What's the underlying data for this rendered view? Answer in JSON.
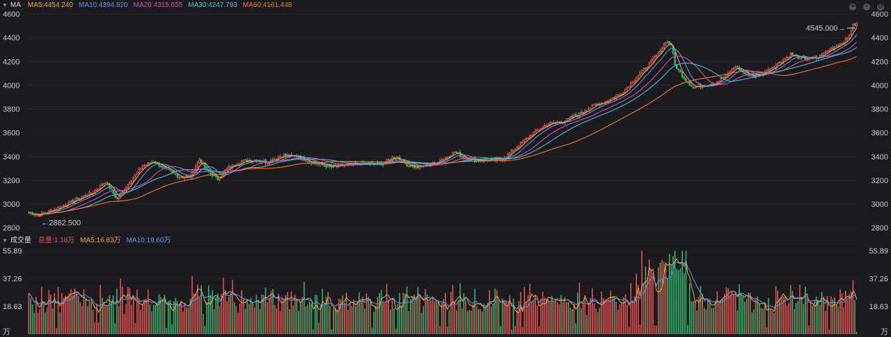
{
  "header": {
    "indicator": "MA",
    "ma5": "MA5:4454.240",
    "ma10": "MA10:4394.820",
    "ma20": "MA20:4315.655",
    "ma30": "MA30:4247.793",
    "ma60": "MA60:4161.448"
  },
  "volume_header": {
    "title": "成交量",
    "total": "总量:1.18万",
    "ma5": "MA5:16.83万",
    "ma10": "MA10:19.60万"
  },
  "colors": {
    "up": "#e05252",
    "down": "#2fb36b",
    "ma5": "#f2a93b",
    "ma10": "#4f9cf0",
    "ma20": "#d850b7",
    "ma30": "#38c6d9",
    "ma60": "#f07a2a"
  },
  "chart_data": [
    {
      "type": "candlestick",
      "title": "",
      "ylim": [
        2760,
        4600
      ],
      "yticks": [
        "4600",
        "4400",
        "4200",
        "4000",
        "3800",
        "3600",
        "3400",
        "3200",
        "3000",
        "2800"
      ],
      "annotations": {
        "high": "4545.000",
        "low": "2882.500"
      },
      "anchors": [
        [
          0,
          2930
        ],
        [
          5,
          2905
        ],
        [
          15,
          2960
        ],
        [
          25,
          3030
        ],
        [
          35,
          3100
        ],
        [
          42,
          3190
        ],
        [
          48,
          3040
        ],
        [
          55,
          3190
        ],
        [
          62,
          3320
        ],
        [
          68,
          3360
        ],
        [
          75,
          3290
        ],
        [
          82,
          3230
        ],
        [
          88,
          3230
        ],
        [
          93,
          3380
        ],
        [
          97,
          3280
        ],
        [
          103,
          3210
        ],
        [
          108,
          3300
        ],
        [
          116,
          3360
        ],
        [
          124,
          3370
        ],
        [
          130,
          3350
        ],
        [
          138,
          3410
        ],
        [
          146,
          3400
        ],
        [
          155,
          3350
        ],
        [
          165,
          3310
        ],
        [
          172,
          3330
        ],
        [
          182,
          3340
        ],
        [
          192,
          3340
        ],
        [
          200,
          3400
        ],
        [
          206,
          3330
        ],
        [
          212,
          3310
        ],
        [
          220,
          3340
        ],
        [
          226,
          3380
        ],
        [
          232,
          3440
        ],
        [
          237,
          3390
        ],
        [
          243,
          3370
        ],
        [
          250,
          3370
        ],
        [
          258,
          3380
        ],
        [
          266,
          3480
        ],
        [
          274,
          3590
        ],
        [
          282,
          3670
        ],
        [
          292,
          3700
        ],
        [
          300,
          3760
        ],
        [
          308,
          3830
        ],
        [
          315,
          3870
        ],
        [
          322,
          3920
        ],
        [
          330,
          4050
        ],
        [
          338,
          4180
        ],
        [
          343,
          4270
        ],
        [
          347,
          4370
        ],
        [
          350,
          4340
        ],
        [
          352,
          4170
        ],
        [
          356,
          4080
        ],
        [
          362,
          3980
        ],
        [
          368,
          4000
        ],
        [
          374,
          4020
        ],
        [
          380,
          4080
        ],
        [
          385,
          4160
        ],
        [
          390,
          4100
        ],
        [
          395,
          4080
        ],
        [
          400,
          4100
        ],
        [
          408,
          4180
        ],
        [
          415,
          4260
        ],
        [
          422,
          4220
        ],
        [
          430,
          4230
        ],
        [
          436,
          4300
        ],
        [
          442,
          4350
        ],
        [
          446,
          4390
        ],
        [
          449,
          4500
        ],
        [
          451,
          4520
        ]
      ],
      "ma_periods": [
        5,
        10,
        20,
        30,
        60
      ]
    },
    {
      "type": "bar",
      "title": "",
      "yticks": [
        "55.89",
        "37.26",
        "18.63"
      ],
      "unit": "万",
      "ylim": [
        0,
        55.89
      ]
    }
  ]
}
